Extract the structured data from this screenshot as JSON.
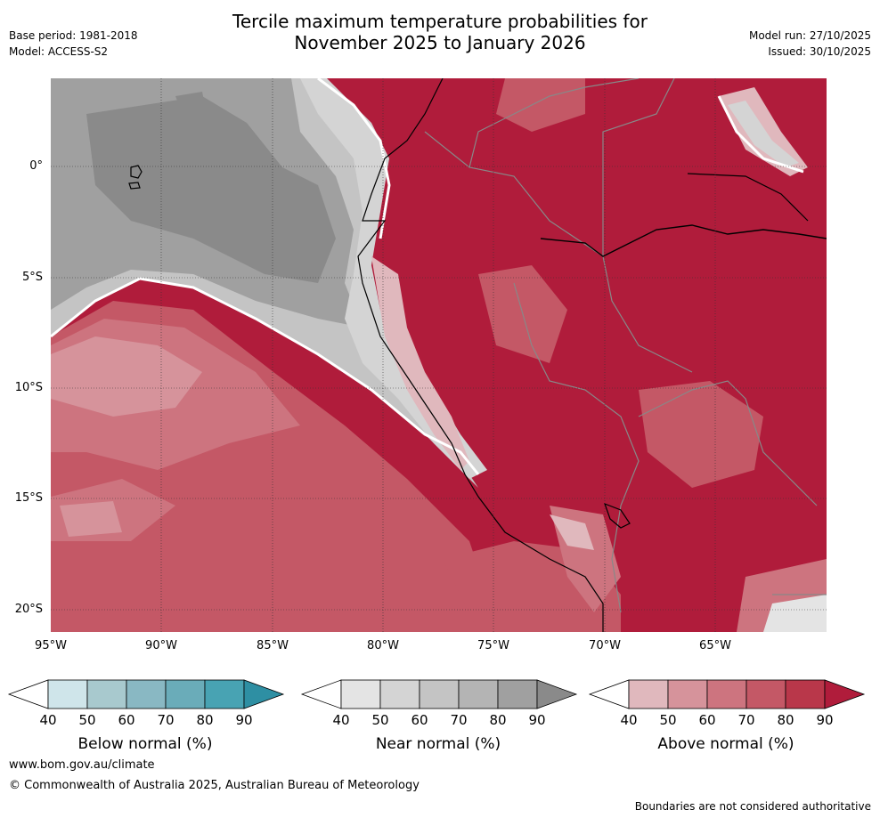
{
  "title_line1": "Tercile maximum temperature probabilities for",
  "title_line2": "November 2025 to January 2026",
  "base_period": "Base period: 1981-2018",
  "model": "Model: ACCESS-S2",
  "model_run": "Model run: 27/10/2025",
  "issued": "Issued: 30/10/2025",
  "lat_labels": [
    "0°",
    "5°S",
    "10°S",
    "15°S",
    "20°S"
  ],
  "lon_labels": [
    "95°W",
    "90°W",
    "85°W",
    "80°W",
    "75°W",
    "70°W",
    "65°W"
  ],
  "colorbars": [
    {
      "label": "Below normal (%)",
      "ticks": [
        "40",
        "50",
        "60",
        "70",
        "80",
        "90"
      ],
      "colors": [
        "#cfe5ea",
        "#a8c9ce",
        "#89b8c3",
        "#6aacb9",
        "#48a3b3",
        "#2e8fa3"
      ]
    },
    {
      "label": "Near normal (%)",
      "ticks": [
        "40",
        "50",
        "60",
        "70",
        "80",
        "90"
      ],
      "colors": [
        "#e4e4e4",
        "#d4d4d4",
        "#c4c4c4",
        "#b4b4b4",
        "#a0a0a0",
        "#8a8a8a"
      ]
    },
    {
      "label": "Above normal (%)",
      "ticks": [
        "40",
        "50",
        "60",
        "70",
        "80",
        "90"
      ],
      "colors": [
        "#e0b8bd",
        "#d6939b",
        "#cd747f",
        "#c45866",
        "#b9374a",
        "#b01c3b"
      ]
    }
  ],
  "website": "www.bom.gov.au/climate",
  "copyright": "© Commonwealth of Australia 2025, Australian Bureau of Meteorology",
  "boundary_note": "Boundaries are not considered authoritative"
}
